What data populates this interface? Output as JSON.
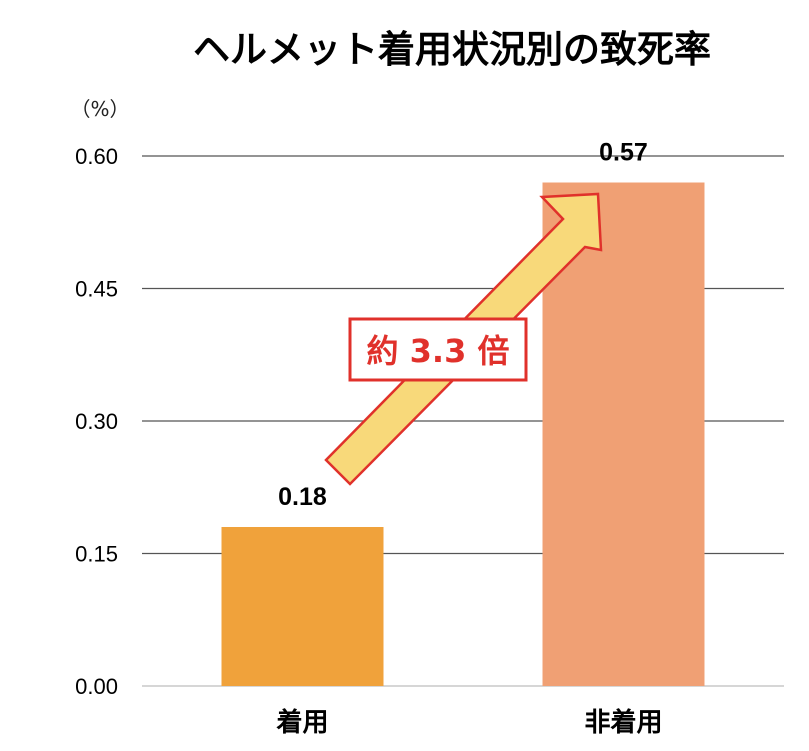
{
  "chart_data": {
    "type": "bar",
    "title": "ヘルメット着用状況別の致死率",
    "unit_label": "（%）",
    "categories": [
      "着用",
      "非着用"
    ],
    "values": [
      0.18,
      0.57
    ],
    "value_labels": [
      "0.18",
      "0.57"
    ],
    "ylim": [
      0,
      0.6
    ],
    "yticks": [
      "0.00",
      "0.15",
      "0.30",
      "0.45",
      "0.60"
    ],
    "grid": true,
    "bar_colors": [
      "#F0A23B",
      "#F0A074"
    ],
    "annotation": {
      "text": "約 3.3 倍",
      "text_color": "#E0312B",
      "border_color": "#E0312B",
      "arrow_fill": "#F8D97A",
      "arrow_stroke": "#E0312B"
    }
  }
}
